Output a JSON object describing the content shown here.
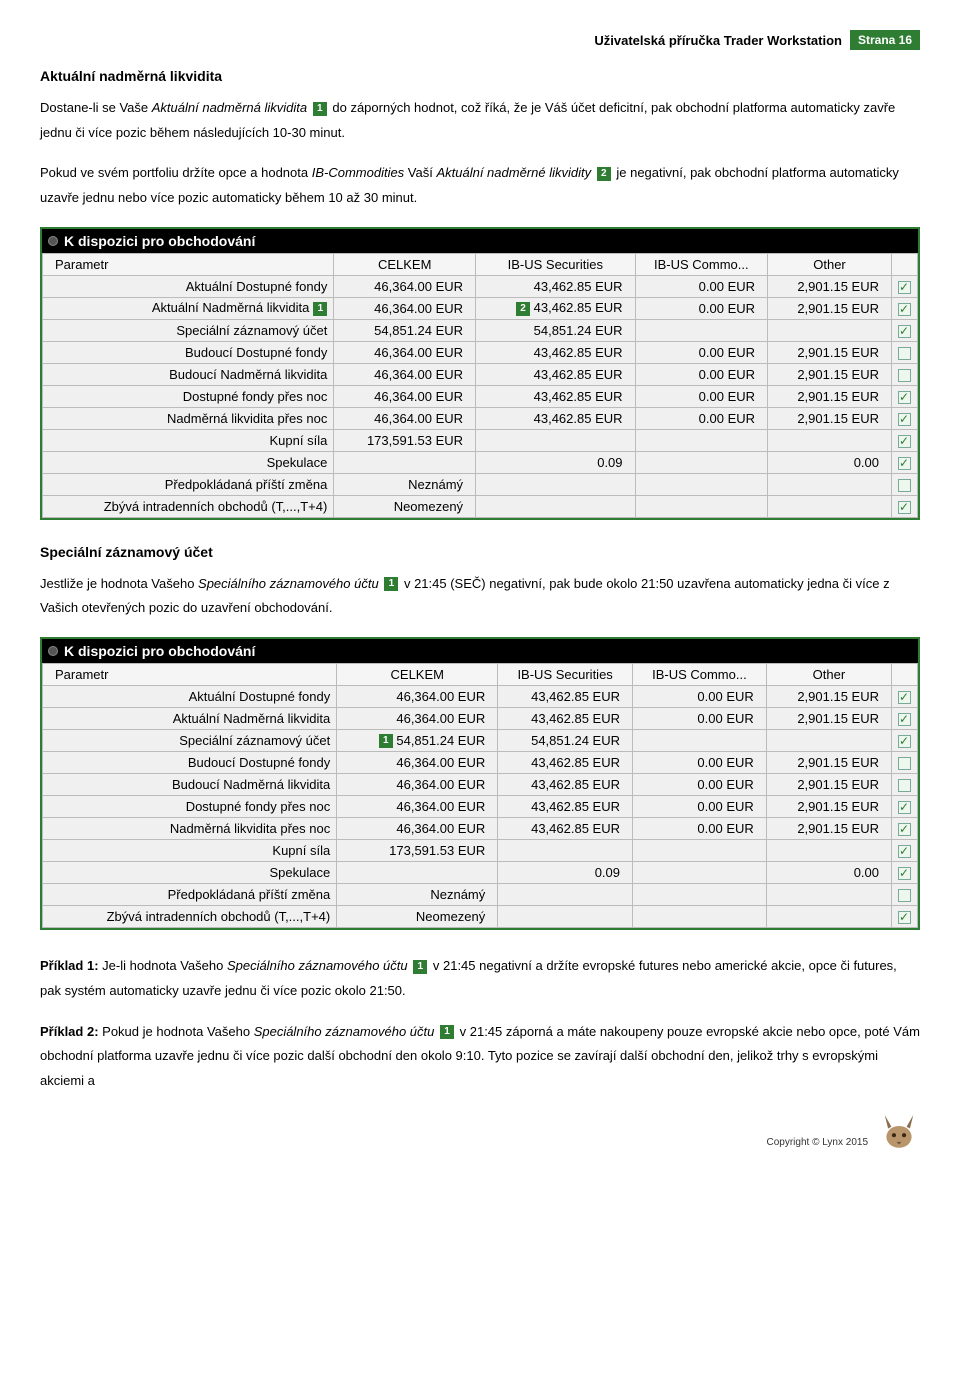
{
  "header": {
    "title": "Uživatelská příručka Trader Workstation",
    "page_label": "Strana 16"
  },
  "section1": {
    "heading": "Aktuální nadměrná likvidita",
    "p1a": "Dostane-li se Vaše ",
    "p1b_italic": "Aktuální nadměrná likvidita",
    "p1_badge": "1",
    "p1c": " do záporných hodnot, což říká, že je Váš účet deficitní, pak obchodní platforma automaticky zavře jednu či více pozic během následujících 10-30 minut.",
    "p2a": "Pokud ve svém portfoliu držíte opce a hodnota ",
    "p2b_italic": "IB-Commodities",
    "p2c": " Vaší ",
    "p2d_italic": "Aktuální nadměrné likvidity",
    "p2_badge": "2",
    "p2e": " je negativní, pak obchodní platforma automaticky uzavře jednu nebo více pozic automaticky během 10 až 30 minut."
  },
  "table1": {
    "title": "K dispozici pro obchodování",
    "columns": [
      "Parametr",
      "CELKEM",
      "IB-US Securities",
      "IB-US Commo...",
      "Other",
      ""
    ],
    "rows": [
      {
        "label": "Aktuální Dostupné fondy",
        "label_badge": "",
        "c1": "46,364.00 EUR",
        "c1_badge": "",
        "c2": "43,462.85 EUR",
        "c2_badge": "",
        "c3": "0.00 EUR",
        "c4": "2,901.15 EUR",
        "chk": "checked"
      },
      {
        "label": "Aktuální Nadměrná likvidita",
        "label_badge": "1",
        "c1": "46,364.00 EUR",
        "c1_badge": "",
        "c2": "43,462.85 EUR",
        "c2_badge": "2",
        "c3": "0.00 EUR",
        "c4": "2,901.15 EUR",
        "chk": "checked"
      },
      {
        "label": "Speciální záznamový účet",
        "label_badge": "",
        "c1": "54,851.24 EUR",
        "c1_badge": "",
        "c2": "54,851.24 EUR",
        "c2_badge": "",
        "c3": "",
        "c4": "",
        "chk": "checked"
      },
      {
        "label": "Budoucí Dostupné fondy",
        "label_badge": "",
        "c1": "46,364.00 EUR",
        "c1_badge": "",
        "c2": "43,462.85 EUR",
        "c2_badge": "",
        "c3": "0.00 EUR",
        "c4": "2,901.15 EUR",
        "chk": ""
      },
      {
        "label": "Budoucí Nadměrná likvidita",
        "label_badge": "",
        "c1": "46,364.00 EUR",
        "c1_badge": "",
        "c2": "43,462.85 EUR",
        "c2_badge": "",
        "c3": "0.00 EUR",
        "c4": "2,901.15 EUR",
        "chk": ""
      },
      {
        "label": "Dostupné fondy přes noc",
        "label_badge": "",
        "c1": "46,364.00 EUR",
        "c1_badge": "",
        "c2": "43,462.85 EUR",
        "c2_badge": "",
        "c3": "0.00 EUR",
        "c4": "2,901.15 EUR",
        "chk": "checked"
      },
      {
        "label": "Nadměrná likvidita přes noc",
        "label_badge": "",
        "c1": "46,364.00 EUR",
        "c1_badge": "",
        "c2": "43,462.85 EUR",
        "c2_badge": "",
        "c3": "0.00 EUR",
        "c4": "2,901.15 EUR",
        "chk": "checked"
      },
      {
        "label": "Kupní síla",
        "label_badge": "",
        "c1": "173,591.53 EUR",
        "c1_badge": "",
        "c2": "",
        "c2_badge": "",
        "c3": "",
        "c4": "",
        "chk": "checked"
      },
      {
        "label": "Spekulace",
        "label_badge": "",
        "c1": "",
        "c1_badge": "",
        "c2": "0.09",
        "c2_badge": "",
        "c3": "",
        "c4": "0.00",
        "chk": "checked"
      },
      {
        "label": "Předpokládaná příští změna",
        "label_badge": "",
        "c1": "Neznámý",
        "c1_badge": "",
        "c2": "",
        "c2_badge": "",
        "c3": "",
        "c4": "",
        "chk": ""
      },
      {
        "label": "Zbývá intradenních obchodů (T,...,T+4)",
        "label_badge": "",
        "c1": "Neomezený",
        "c1_badge": "",
        "c2": "",
        "c2_badge": "",
        "c3": "",
        "c4": "",
        "chk": "checked"
      }
    ]
  },
  "section2": {
    "heading": "Speciální záznamový účet",
    "p1a": "Jestliže je hodnota Vašeho ",
    "p1b_italic": "Speciálního záznamového účtu",
    "p1_badge": "1",
    "p1c": " v 21:45 (SEČ) negativní, pak bude okolo 21:50 uzavřena automaticky jedna či více z Vašich otevřených pozic do uzavření obchodování."
  },
  "table2": {
    "title": "K dispozici pro obchodování",
    "columns": [
      "Parametr",
      "CELKEM",
      "IB-US Securities",
      "IB-US Commo...",
      "Other",
      ""
    ],
    "rows": [
      {
        "label": "Aktuální Dostupné fondy",
        "label_badge": "",
        "c1": "46,364.00 EUR",
        "c1_badge": "",
        "c2": "43,462.85 EUR",
        "c2_badge": "",
        "c3": "0.00 EUR",
        "c4": "2,901.15 EUR",
        "chk": "checked"
      },
      {
        "label": "Aktuální Nadměrná likvidita",
        "label_badge": "",
        "c1": "46,364.00 EUR",
        "c1_badge": "",
        "c2": "43,462.85 EUR",
        "c2_badge": "",
        "c3": "0.00 EUR",
        "c4": "2,901.15 EUR",
        "chk": "checked"
      },
      {
        "label": "Speciální záznamový účet",
        "label_badge": "",
        "c1": "54,851.24 EUR",
        "c1_badge": "1",
        "c2": "54,851.24 EUR",
        "c2_badge": "",
        "c3": "",
        "c4": "",
        "chk": "checked"
      },
      {
        "label": "Budoucí Dostupné fondy",
        "label_badge": "",
        "c1": "46,364.00 EUR",
        "c1_badge": "",
        "c2": "43,462.85 EUR",
        "c2_badge": "",
        "c3": "0.00 EUR",
        "c4": "2,901.15 EUR",
        "chk": ""
      },
      {
        "label": "Budoucí Nadměrná likvidita",
        "label_badge": "",
        "c1": "46,364.00 EUR",
        "c1_badge": "",
        "c2": "43,462.85 EUR",
        "c2_badge": "",
        "c3": "0.00 EUR",
        "c4": "2,901.15 EUR",
        "chk": ""
      },
      {
        "label": "Dostupné fondy přes noc",
        "label_badge": "",
        "c1": "46,364.00 EUR",
        "c1_badge": "",
        "c2": "43,462.85 EUR",
        "c2_badge": "",
        "c3": "0.00 EUR",
        "c4": "2,901.15 EUR",
        "chk": "checked"
      },
      {
        "label": "Nadměrná likvidita přes noc",
        "label_badge": "",
        "c1": "46,364.00 EUR",
        "c1_badge": "",
        "c2": "43,462.85 EUR",
        "c2_badge": "",
        "c3": "0.00 EUR",
        "c4": "2,901.15 EUR",
        "chk": "checked"
      },
      {
        "label": "Kupní síla",
        "label_badge": "",
        "c1": "173,591.53 EUR",
        "c1_badge": "",
        "c2": "",
        "c2_badge": "",
        "c3": "",
        "c4": "",
        "chk": "checked"
      },
      {
        "label": "Spekulace",
        "label_badge": "",
        "c1": "",
        "c1_badge": "",
        "c2": "0.09",
        "c2_badge": "",
        "c3": "",
        "c4": "0.00",
        "chk": "checked"
      },
      {
        "label": "Předpokládaná příští změna",
        "label_badge": "",
        "c1": "Neznámý",
        "c1_badge": "",
        "c2": "",
        "c2_badge": "",
        "c3": "",
        "c4": "",
        "chk": ""
      },
      {
        "label": "Zbývá intradenních obchodů (T,...,T+4)",
        "label_badge": "",
        "c1": "Neomezený",
        "c1_badge": "",
        "c2": "",
        "c2_badge": "",
        "c3": "",
        "c4": "",
        "chk": "checked"
      }
    ]
  },
  "example1": {
    "label": "Příklad 1:",
    "t1": " Je-li hodnota Vašeho ",
    "it": "Speciálního záznamového účtu",
    "badge": "1",
    "t2": " v 21:45 negativní a držíte evropské futures nebo americké akcie, opce či futures, pak systém automaticky uzavře jednu či více pozic okolo 21:50."
  },
  "example2": {
    "label": "Příklad 2:",
    "t1": " Pokud je hodnota Vašeho ",
    "it": "Speciálního záznamového účtu",
    "badge": "1",
    "t2": " v 21:45 záporná a máte nakoupeny pouze evropské akcie nebo opce, poté Vám obchodní platforma uzavře jednu či více pozic další obchodní den okolo 9:10. Tyto pozice se zavírají další obchodní den, jelikož trhy s evropskými akciemi a"
  },
  "footer": {
    "copyright": "Copyright © Lynx 2015"
  }
}
